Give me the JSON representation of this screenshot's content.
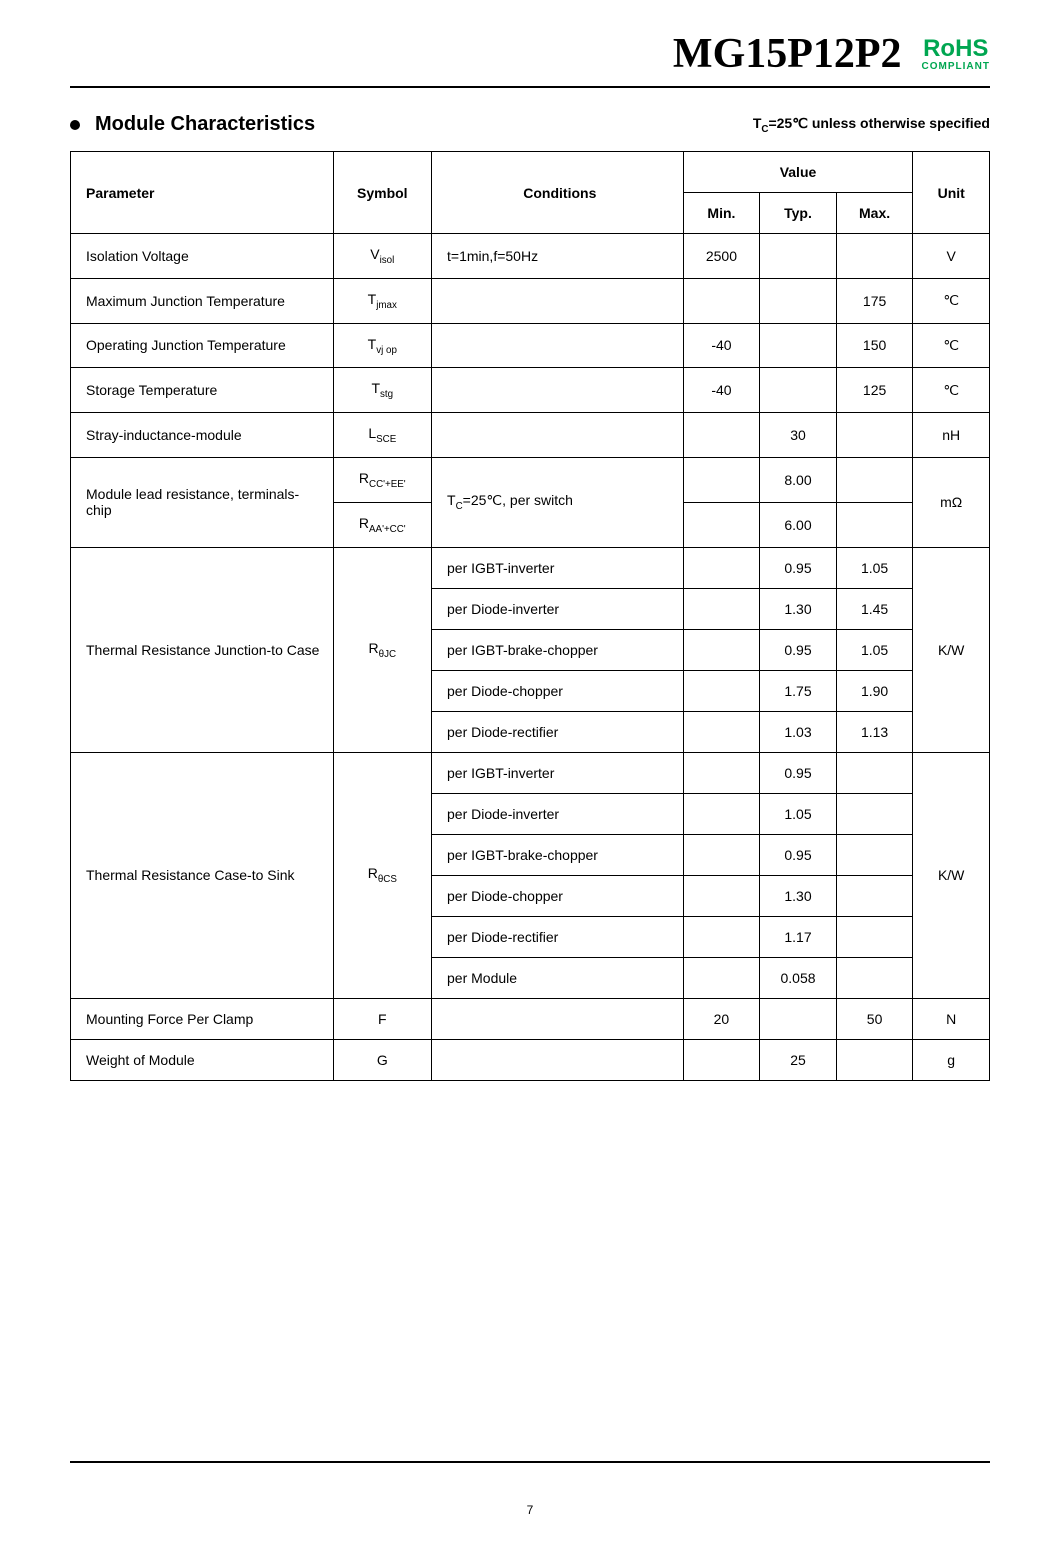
{
  "header": {
    "part_number": "MG15P12P2",
    "rohs_main": "RoHS",
    "rohs_sub": "COMPLIANT"
  },
  "section": {
    "title": "Module Characteristics",
    "note_prefix": "T",
    "note_sub": "C",
    "note_suffix": "=25℃ unless otherwise specified"
  },
  "table": {
    "headers": {
      "parameter": "Parameter",
      "symbol": "Symbol",
      "conditions": "Conditions",
      "value": "Value",
      "min": "Min.",
      "typ": "Typ.",
      "max": "Max.",
      "unit": "Unit"
    },
    "rows": {
      "isolation": {
        "param": "Isolation Voltage",
        "symbol": "V",
        "symbol_sub": "isol",
        "cond": "t=1min,f=50Hz",
        "min": "2500",
        "typ": "",
        "max": "",
        "unit": "V"
      },
      "max_junction": {
        "param": "Maximum Junction Temperature",
        "symbol": "T",
        "symbol_sub": "jmax",
        "cond": "",
        "min": "",
        "typ": "",
        "max": "175",
        "unit": "℃"
      },
      "op_junction": {
        "param": "Operating Junction Temperature",
        "symbol": "T",
        "symbol_sub": "vj op",
        "cond": "",
        "min": "-40",
        "typ": "",
        "max": "150",
        "unit": "℃"
      },
      "storage": {
        "param": "Storage Temperature",
        "symbol": "T",
        "symbol_sub": "stg",
        "cond": "",
        "min": "-40",
        "typ": "",
        "max": "125",
        "unit": "℃"
      },
      "stray": {
        "param": "Stray-inductance-module",
        "symbol": "L",
        "symbol_sub": "SCE",
        "cond": "",
        "min": "",
        "typ": "30",
        "max": "",
        "unit": "nH"
      },
      "module_lead": {
        "param": "Module lead resistance, terminals-chip",
        "symbol1": "R",
        "symbol1_sub": "CC'+EE'",
        "symbol2": "R",
        "symbol2_sub": "AA'+CC'",
        "cond_prefix": "T",
        "cond_sub": "C",
        "cond_suffix": "=25℃, per switch",
        "typ1": "8.00",
        "typ2": "6.00",
        "unit": "mΩ"
      },
      "thermal_jc": {
        "param": "Thermal Resistance Junction-to Case",
        "symbol": "R",
        "symbol_sub": "θJC",
        "conds": [
          "per IGBT-inverter",
          "per Diode-inverter",
          "per IGBT-brake-chopper",
          "per Diode-chopper",
          "per Diode-rectifier"
        ],
        "typs": [
          "0.95",
          "1.30",
          "0.95",
          "1.75",
          "1.03"
        ],
        "maxs": [
          "1.05",
          "1.45",
          "1.05",
          "1.90",
          "1.13"
        ],
        "unit": "K/W"
      },
      "thermal_cs": {
        "param": "Thermal Resistance Case-to Sink",
        "symbol": "R",
        "symbol_sub": "θCS",
        "conds": [
          "per IGBT-inverter",
          "per Diode-inverter",
          "per IGBT-brake-chopper",
          "per Diode-chopper",
          "per Diode-rectifier",
          "per Module"
        ],
        "typs": [
          "0.95",
          "1.05",
          "0.95",
          "1.30",
          "1.17",
          "0.058"
        ],
        "unit": "K/W"
      },
      "mounting": {
        "param": "Mounting Force Per Clamp",
        "symbol": "F",
        "cond": "",
        "min": "20",
        "typ": "",
        "max": "50",
        "unit": "N"
      },
      "weight": {
        "param": "Weight of Module",
        "symbol": "G",
        "cond": "",
        "min": "",
        "typ": "25",
        "max": "",
        "unit": "g"
      }
    }
  },
  "page_num": "7"
}
